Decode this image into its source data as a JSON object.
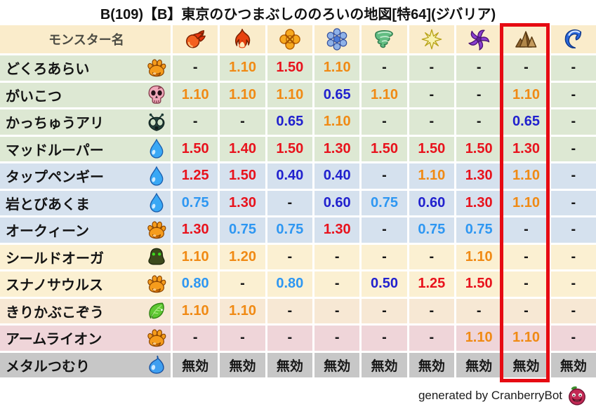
{
  "title": "B(109)【B】東京のひつまぶしののろいの地図[特64](ジバリア)",
  "chart_data": {
    "type": "table",
    "columns": {
      "name_header": "モンスター名",
      "element_icons": [
        "fireball-icon",
        "flame-icon",
        "burst-icon",
        "snowflake-icon",
        "tornado-icon",
        "sparkle-icon",
        "pinwheel-icon",
        "rock-icon",
        "wave-icon"
      ]
    },
    "highlighted_column": {
      "index": 7,
      "icon": "rock-icon"
    },
    "rows": [
      {
        "name": "どくろあらい",
        "family_icon": "paw-icon",
        "bg": "green",
        "values": [
          "-",
          "1.10",
          "1.50",
          "1.10",
          "-",
          "-",
          "-",
          "-",
          "-"
        ]
      },
      {
        "name": "がいこつ",
        "family_icon": "skull-icon",
        "bg": "green",
        "values": [
          "1.10",
          "1.10",
          "1.10",
          "0.65",
          "1.10",
          "-",
          "-",
          "1.10",
          "-"
        ]
      },
      {
        "name": "かっちゅうアリ",
        "family_icon": "bug-icon",
        "bg": "green",
        "values": [
          "-",
          "-",
          "0.65",
          "1.10",
          "-",
          "-",
          "-",
          "0.65",
          "-"
        ]
      },
      {
        "name": "マッドルーパー",
        "family_icon": "waterdrop-icon",
        "bg": "green",
        "values": [
          "1.50",
          "1.40",
          "1.50",
          "1.30",
          "1.50",
          "1.50",
          "1.50",
          "1.30",
          "-"
        ]
      },
      {
        "name": "タップペンギー",
        "family_icon": "waterdrop-icon",
        "bg": "blue",
        "values": [
          "1.25",
          "1.50",
          "0.40",
          "0.40",
          "-",
          "1.10",
          "1.30",
          "1.10",
          "-"
        ]
      },
      {
        "name": "岩とびあくま",
        "family_icon": "waterdrop-icon",
        "bg": "blue",
        "values": [
          "0.75",
          "1.30",
          "-",
          "0.60",
          "0.75",
          "0.60",
          "1.30",
          "1.10",
          "-"
        ]
      },
      {
        "name": "オークィーン",
        "family_icon": "paw-icon",
        "bg": "blue",
        "values": [
          "1.30",
          "0.75",
          "0.75",
          "1.30",
          "-",
          "0.75",
          "0.75",
          "-",
          "-"
        ]
      },
      {
        "name": "シールドオーガ",
        "family_icon": "hood-icon",
        "bg": "cream",
        "values": [
          "1.10",
          "1.20",
          "-",
          "-",
          "-",
          "-",
          "1.10",
          "-",
          "-"
        ]
      },
      {
        "name": "スナノサウルス",
        "family_icon": "paw-icon",
        "bg": "cream",
        "values": [
          "0.80",
          "-",
          "0.80",
          "-",
          "0.50",
          "1.25",
          "1.50",
          "-",
          "-"
        ]
      },
      {
        "name": "きりかぶこぞう",
        "family_icon": "leaf-icon",
        "bg": "tan",
        "values": [
          "1.10",
          "1.10",
          "-",
          "-",
          "-",
          "-",
          "-",
          "-",
          "-"
        ]
      },
      {
        "name": "アームライオン",
        "family_icon": "paw-icon",
        "bg": "pink",
        "values": [
          "-",
          "-",
          "-",
          "-",
          "-",
          "-",
          "1.10",
          "1.10",
          "-"
        ]
      },
      {
        "name": "メタルつむり",
        "family_icon": "slime-icon",
        "bg": "gray",
        "values": [
          "無効",
          "無効",
          "無効",
          "無効",
          "無効",
          "無効",
          "無効",
          "無効",
          "無効"
        ]
      }
    ],
    "immune_label": "無効"
  },
  "colors": {
    "headerbg": "#faeccb",
    "hi": "#e8121c",
    "up": "#f08a14",
    "dn": "#2e97f2",
    "lo": "#2121ce",
    "neutral": "#161616",
    "box": "#e60a12"
  },
  "row_bg": {
    "green": "#dde8d3",
    "blue": "#d5e1ee",
    "cream": "#fbf0d2",
    "tan": "#f7e8d4",
    "pink": "#efd5d9",
    "gray": "#c7c7c7"
  },
  "footer": {
    "credit": "generated by CranberryBot",
    "icon": "cranberrybot-icon"
  }
}
